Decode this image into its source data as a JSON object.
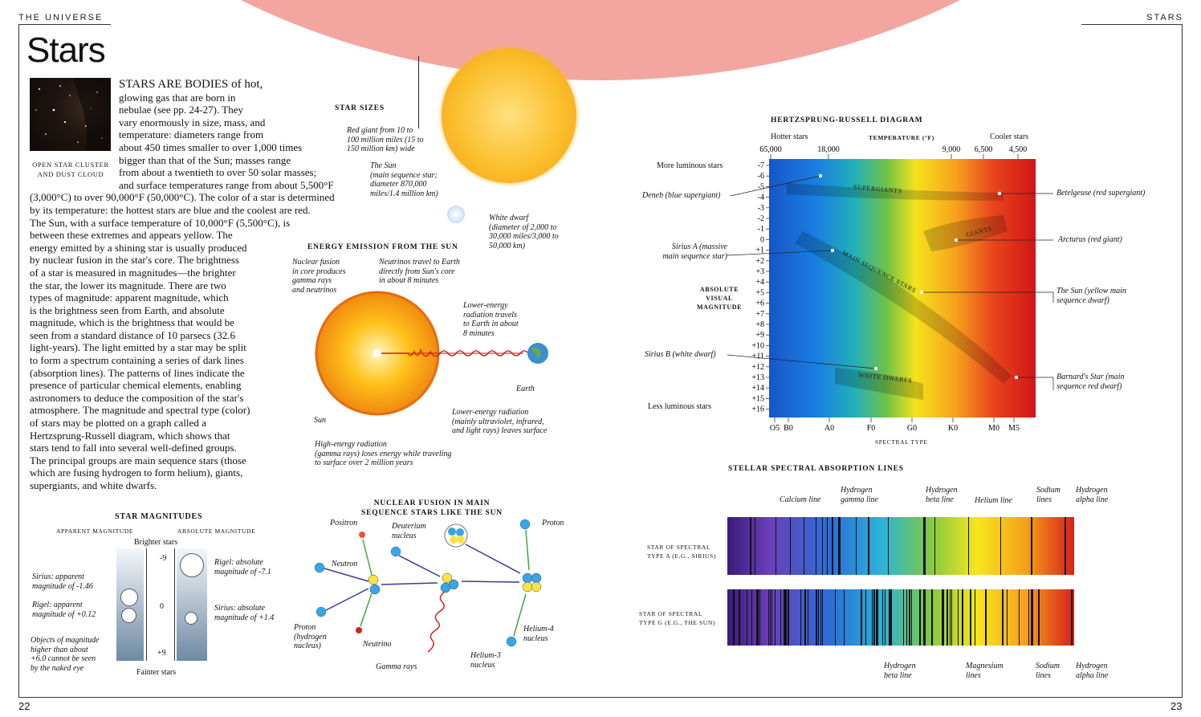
{
  "header": {
    "left": "THE UNIVERSE",
    "right": "STARS",
    "page_left": "22",
    "page_right": "23"
  },
  "title": "Stars",
  "photo_caption": [
    "OPEN STAR CLUSTER",
    "AND DUST CLOUD"
  ],
  "intro_lines": [
    "STARS ARE BODIES of hot,",
    "glowing gas that are born in",
    "nebulae (see pp. 24-27). They",
    "vary enormously in size, mass, and",
    "temperature: diameters range from",
    "about 450 times smaller to over 1,000 times",
    "bigger than that of the Sun; masses range",
    "from about a twentieth to over 50 solar masses;",
    "and surface temperatures range from about 5,500°F",
    "(3,000°C) to over 90,000°F (50,000°C). The color of a star is determined",
    "by its temperature: the hottest stars are blue and the coolest are red.",
    "The Sun, with a surface temperature of 10,000°F (5,500°C), is",
    "between these extremes and appears yellow. The",
    "energy emitted by a shining star is usually produced",
    "by nuclear fusion in the star's core. The brightness",
    "of a star is measured in magnitudes—the brighter",
    "the star, the lower its magnitude. There are two",
    "types of magnitude: apparent magnitude, which",
    "is the brightness seen from Earth, and absolute",
    "magnitude, which is the brightness that would be",
    "seen from a standard distance of 10 parsecs (32.6",
    "light-years). The light emitted by a star may be split",
    "to form a spectrum containing a series of dark lines",
    "(absorption lines). The patterns of lines indicate the",
    "presence of particular chemical elements, enabling",
    "astronomers to deduce the composition of the star's",
    "atmosphere. The magnitude and spectral type (color)",
    "of stars may be plotted on a graph called a",
    "Hertzsprung-Russell diagram, which shows that",
    "stars tend to fall into several well-defined groups.",
    "The principal groups are main sequence stars (those",
    "which are fusing hydrogen to form helium), giants,",
    "supergiants, and white dwarfs."
  ],
  "star_sizes": {
    "title": "STAR SIZES",
    "red_giant": [
      "Red giant from 10 to",
      "100 million miles (15 to",
      "150 million km) wide"
    ],
    "sun": [
      "The Sun",
      "(main sequence star;",
      "diameter 870,000",
      "miles/1.4 million km)"
    ],
    "white_dwarf": [
      "White dwarf",
      "(diameter of 2,000 to",
      "30,000 miles/3,000 to",
      "50,000 km)"
    ]
  },
  "energy": {
    "title": "ENERGY EMISSION FROM THE SUN",
    "fusion": [
      "Nuclear fusion",
      "in core produces",
      "gamma rays",
      "and neutrinos"
    ],
    "neutrinos": [
      "Neutrinos travel to Earth",
      "directly from Sun's core",
      "in about 8 minutes"
    ],
    "lower_travel": [
      "Lower-energy",
      "radiation travels",
      "to Earth in about",
      "8 minutes"
    ],
    "earth": "Earth",
    "sun": "Sun",
    "lower_leaves": [
      "Lower-energy radiation",
      "(mainly ultraviolet, infrared,",
      "and light rays) leaves surface"
    ],
    "high": [
      "High-energy radiation",
      "(gamma rays) loses energy while traveling",
      "to surface over 2 million years"
    ]
  },
  "magnitudes": {
    "title": "STAR MAGNITUDES",
    "apparent": "APPARENT MAGNITUDE",
    "absolute": "ABSOLUTE MAGNITUDE",
    "brighter": "Brighter stars",
    "fainter": "Fainter stars",
    "ticks": [
      "-9",
      "0",
      "+9"
    ],
    "sirius_app": [
      "Sirius: apparent",
      "magnitude of -1.46"
    ],
    "rigel_app": [
      "Rigel: apparent",
      "magnitude of +0.12"
    ],
    "objects": [
      "Objects of magnitude",
      "higher than about",
      "+6.0 cannot be seen",
      "by the naked eye"
    ],
    "rigel_abs": [
      "Rigel: absolute",
      "magnitude of -7.1"
    ],
    "sirius_abs": [
      "Sirius: absolute",
      "magnitude of +1.4"
    ]
  },
  "fusion": {
    "title": [
      "NUCLEAR FUSION IN MAIN",
      "SEQUENCE STARS LIKE THE SUN"
    ],
    "positron": "Positron",
    "deuterium": [
      "Deuterium",
      "nucleus"
    ],
    "proton_top": "Proton",
    "neutron": "Neutron",
    "proton": [
      "Proton",
      "(hydrogen",
      "nucleus)"
    ],
    "neutrino": "Neutrino",
    "gamma": "Gamma rays",
    "helium3": [
      "Helium-3",
      "nucleus"
    ],
    "helium4": [
      "Helium-4",
      "nucleus"
    ]
  },
  "hr": {
    "title": "HERTZSPRUNG-RUSSELL DIAGRAM",
    "hotter": "Hotter stars",
    "cooler": "Cooler stars",
    "temp_label": "TEMPERATURE (°F)",
    "temps": [
      "65,000",
      "18,000",
      "9,000",
      "6,500",
      "4,500"
    ],
    "more_lum": "More luminous stars",
    "less_lum": "Less luminous stars",
    "ylabel": [
      "ABSOLUTE",
      "VISUAL",
      "MAGNITUDE"
    ],
    "mags": [
      "-7",
      "-6",
      "-5",
      "-4",
      "-3",
      "-2",
      "-1",
      "0",
      "+1",
      "+2",
      "+3",
      "+4",
      "+5",
      "+6",
      "+7",
      "+8",
      "+9",
      "+10",
      "+11",
      "+12",
      "+13",
      "+14",
      "+15",
      "+16"
    ],
    "spectral": [
      "O5",
      "B0",
      "A0",
      "F0",
      "G0",
      "K0",
      "M0",
      "M5"
    ],
    "xlabel": "SPECTRAL TYPE",
    "groups": [
      "SUPERGIANTS",
      "GIANTS",
      "MAIN SEQUENCE STARS",
      "WHITE DWARFS"
    ],
    "deneb": "Deneb (blue supergiant)",
    "sirius_a": [
      "Sirius A (massive",
      "main sequence star)"
    ],
    "sirius_b": "Sirius B (white dwarf)",
    "betelgeuse": "Betelgeuse (red supergiant)",
    "arcturus": "Arcturus (red giant)",
    "sun": [
      "The Sun (yellow main",
      "sequence dwarf)"
    ],
    "barnard": [
      "Barnard's Star (main",
      "sequence red dwarf)"
    ]
  },
  "spectra": {
    "title": "STELLAR SPECTRAL ABSORPTION LINES",
    "rowA": [
      "STAR OF SPECTRAL",
      "TYPE A (e.g., SIRIUS)"
    ],
    "rowG": [
      "STAR OF SPECTRAL",
      "TYPE G (e.g., THE SUN)"
    ],
    "calcium": "Calcium line",
    "h_gamma": [
      "Hydrogen",
      "gamma line"
    ],
    "h_beta_top": [
      "Hydrogen",
      "beta line"
    ],
    "helium": "Helium line",
    "sodium_top": [
      "Sodium",
      "lines"
    ],
    "h_alpha_top": [
      "Hydrogen",
      "alpha line"
    ],
    "h_beta_bot": [
      "Hydrogen",
      "beta line"
    ],
    "magnesium": [
      "Magnesium",
      "lines"
    ],
    "sodium_bot": [
      "Sodium",
      "lines"
    ],
    "h_alpha_bot": [
      "Hydrogen",
      "alpha line"
    ]
  }
}
